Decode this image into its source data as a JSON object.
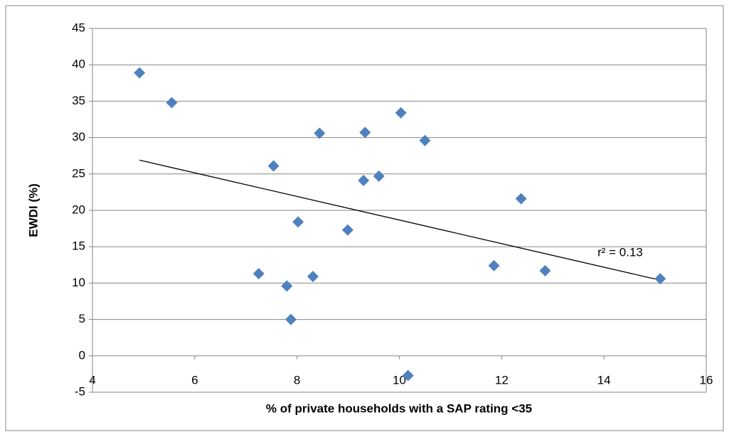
{
  "chart_data": {
    "type": "scatter",
    "x_label": "% of private households with a SAP rating <35",
    "y_label": "EWDI (%)",
    "xlim": [
      4,
      16
    ],
    "xticks": [
      4,
      6,
      8,
      10,
      12,
      14,
      16
    ],
    "ylim": [
      -5,
      45
    ],
    "yticks": [
      -5,
      0,
      5,
      10,
      15,
      20,
      25,
      30,
      35,
      40,
      45
    ],
    "grid": true,
    "series": [
      {
        "color": "#4f81bd",
        "x": [
          4.92,
          5.55,
          7.25,
          7.54,
          7.8,
          7.88,
          8.02,
          8.31,
          8.44,
          8.99,
          9.3,
          9.33,
          9.6,
          10.03,
          10.17,
          10.5,
          11.85,
          12.38,
          12.85,
          15.1
        ],
        "values": [
          38.9,
          34.8,
          11.3,
          26.1,
          9.6,
          5.0,
          18.4,
          10.9,
          30.6,
          17.3,
          24.1,
          30.7,
          24.7,
          33.4,
          -2.7,
          29.6,
          12.4,
          21.6,
          11.7,
          10.6
        ]
      }
    ],
    "trendline": {
      "color": "#000000",
      "x": [
        4.92,
        15.1
      ],
      "values": [
        26.9,
        10.4
      ]
    },
    "annotation": "r² = 0.13"
  }
}
